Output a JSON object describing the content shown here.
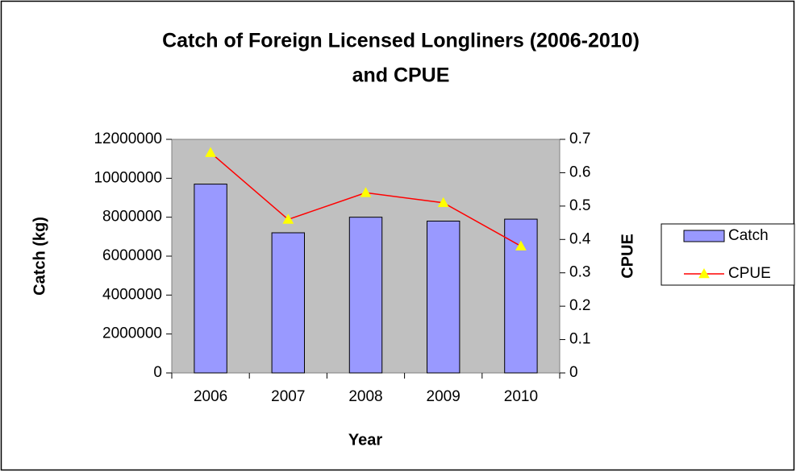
{
  "chart_data": {
    "type": "bar_line",
    "title": [
      "Catch of Foreign Licensed Longliners (2006-2010)",
      "and CPUE"
    ],
    "x_label": "Year",
    "y_label": "Catch (kg)",
    "y2_label": "CPUE",
    "categories": [
      "2006",
      "2007",
      "2008",
      "2009",
      "2010"
    ],
    "series": [
      {
        "name": "Catch",
        "type": "bar",
        "color": "#9999ff",
        "values": [
          9700000,
          7200000,
          8000000,
          7800000,
          7900000
        ]
      },
      {
        "name": "CPUE",
        "type": "line",
        "axis": "y2",
        "color": "#ff0000",
        "marker_color": "#ffff00",
        "values": [
          0.66,
          0.46,
          0.54,
          0.51,
          0.38
        ]
      }
    ],
    "ylim": [
      0,
      12000000
    ],
    "yticks": [
      0,
      2000000,
      4000000,
      6000000,
      8000000,
      10000000,
      12000000
    ],
    "y2lim": [
      0,
      0.7
    ],
    "y2ticks": [
      0,
      0.1,
      0.2,
      0.3,
      0.4,
      0.5,
      0.6,
      0.7
    ],
    "plot_background": "#c0c0c0",
    "legend": "right"
  }
}
